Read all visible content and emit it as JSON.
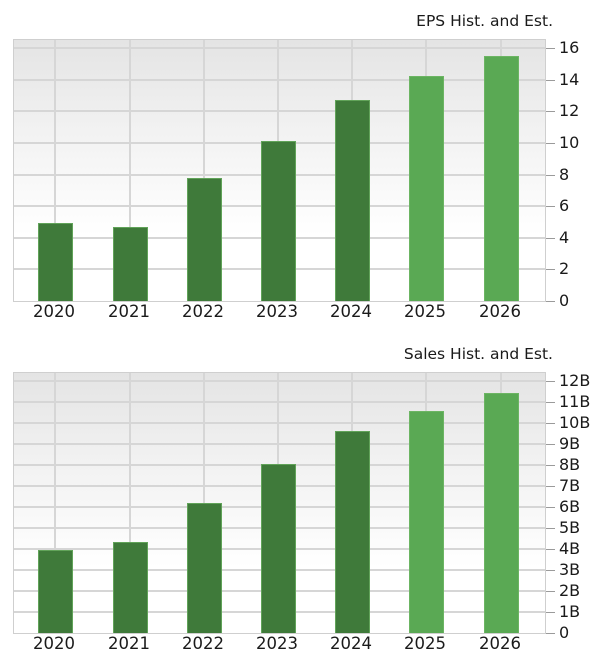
{
  "colors": {
    "historical": "#3f7a3a",
    "estimate": "#5aa954",
    "grid": "#d6d6d6",
    "text": "#1a1a1a"
  },
  "chart_data": [
    {
      "type": "bar",
      "title": "EPS Hist. and Est.",
      "categories": [
        "2020",
        "2021",
        "2022",
        "2023",
        "2024",
        "2025",
        "2026"
      ],
      "values": [
        4.95,
        4.7,
        7.8,
        10.1,
        12.7,
        14.2,
        15.5
      ],
      "kinds": [
        "historical",
        "historical",
        "historical",
        "historical",
        "historical",
        "estimate",
        "estimate"
      ],
      "xlabel": "",
      "ylabel": "",
      "ylim": [
        0,
        16
      ],
      "yticks": [
        "0",
        "2",
        "4",
        "6",
        "8",
        "10",
        "12",
        "14",
        "16"
      ],
      "ytick_values": [
        0,
        2,
        4,
        6,
        8,
        10,
        12,
        14,
        16
      ],
      "y_axis_position": "right",
      "grid": true,
      "legend": null
    },
    {
      "type": "bar",
      "title": "Sales Hist. and Est.",
      "categories": [
        "2020",
        "2021",
        "2022",
        "2023",
        "2024",
        "2025",
        "2026"
      ],
      "values": [
        3.95,
        4.35,
        6.2,
        8.05,
        9.6,
        10.55,
        11.45
      ],
      "units": "B",
      "kinds": [
        "historical",
        "historical",
        "historical",
        "historical",
        "historical",
        "estimate",
        "estimate"
      ],
      "xlabel": "",
      "ylabel": "",
      "ylim": [
        0,
        12
      ],
      "yticks": [
        "0",
        "1B",
        "2B",
        "3B",
        "4B",
        "5B",
        "6B",
        "7B",
        "8B",
        "9B",
        "10B",
        "11B",
        "12B"
      ],
      "ytick_values": [
        0,
        1,
        2,
        3,
        4,
        5,
        6,
        7,
        8,
        9,
        10,
        11,
        12
      ],
      "y_axis_position": "right",
      "grid": true,
      "legend": null
    }
  ]
}
